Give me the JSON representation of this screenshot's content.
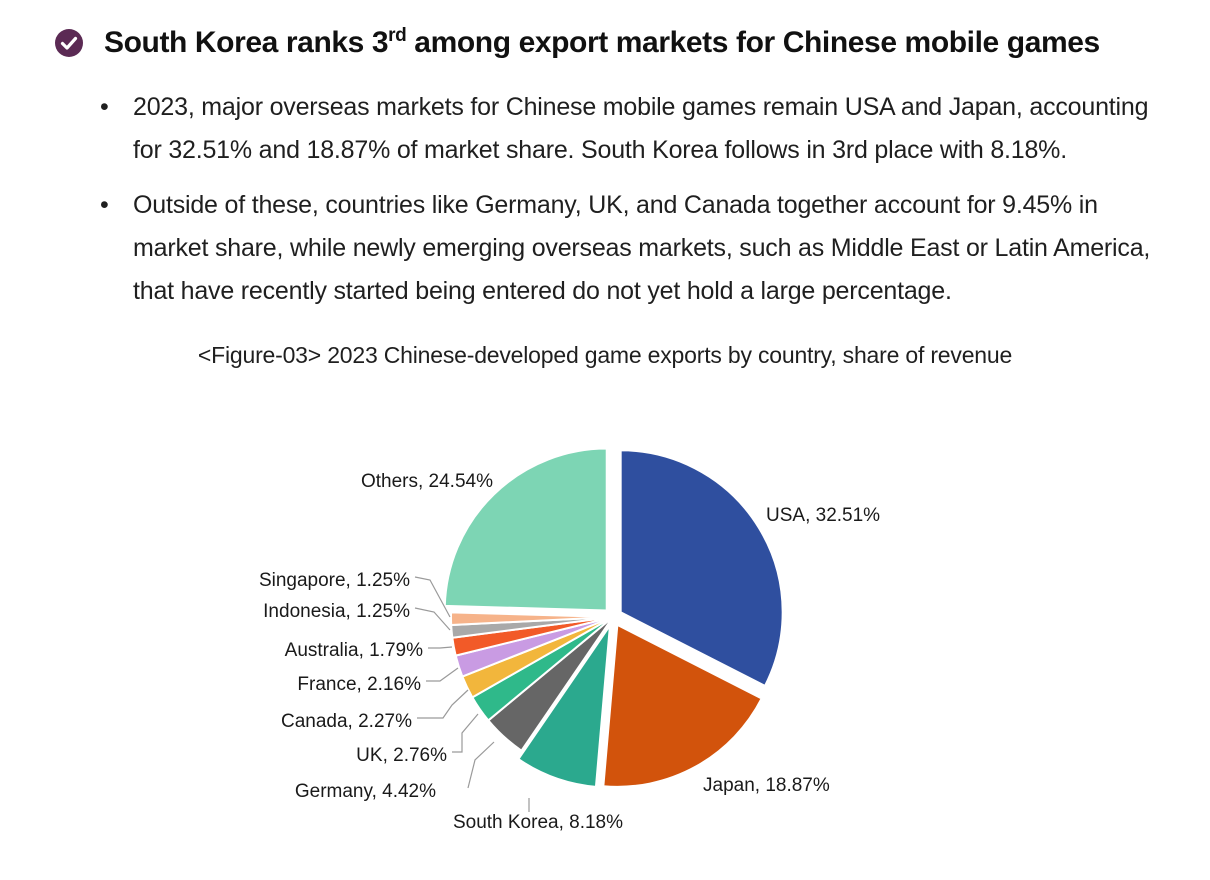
{
  "headline": {
    "text_before": "South Korea ranks 3",
    "superscript": "rd",
    "text_after": " among export markets for Chinese mobile games",
    "icon": "check-circle-icon",
    "icon_color": "#5b2a54"
  },
  "bullets": [
    "2023, major overseas markets for Chinese mobile games remain USA and Japan, accounting for 32.51% and 18.87% of market share. South Korea follows in 3rd place with 8.18%.",
    "Outside of these, countries like Germany, UK, and Canada together account for 9.45% in market share, while newly emerging overseas markets, such as Middle East or Latin America, that have recently started being entered do not yet hold a large percentage."
  ],
  "figure_caption": "<Figure-03> 2023 Chinese-developed game exports by country, share of revenue",
  "chart_data": {
    "type": "pie",
    "title": "<Figure-03> 2023 Chinese-developed game exports by country, share of revenue",
    "start": "12 o'clock",
    "direction": "clockwise",
    "slices": [
      {
        "name": "USA",
        "value": 32.51,
        "label": "USA, 32.51%",
        "color": "#2f4f9f",
        "exploded": true
      },
      {
        "name": "Japan",
        "value": 18.87,
        "label": "Japan, 18.87%",
        "color": "#d2530c",
        "exploded": true
      },
      {
        "name": "South Korea",
        "value": 8.18,
        "label": "South Korea, 8.18%",
        "color": "#2ba98e",
        "exploded": true
      },
      {
        "name": "Germany",
        "value": 4.42,
        "label": "Germany, 4.42%",
        "color": "#666666",
        "exploded": false
      },
      {
        "name": "UK",
        "value": 2.76,
        "label": "UK, 2.76%",
        "color": "#2fb98a",
        "exploded": false
      },
      {
        "name": "Canada",
        "value": 2.27,
        "label": "Canada, 2.27%",
        "color": "#f2b63c",
        "exploded": false
      },
      {
        "name": "France",
        "value": 2.16,
        "label": "France, 2.16%",
        "color": "#c99be3",
        "exploded": false
      },
      {
        "name": "Australia",
        "value": 1.79,
        "label": "Australia, 1.79%",
        "color": "#f25a28",
        "exploded": false
      },
      {
        "name": "Indonesia",
        "value": 1.25,
        "label": "Indonesia, 1.25%",
        "color": "#a9a9a9",
        "exploded": false
      },
      {
        "name": "Singapore",
        "value": 1.25,
        "label": "Singapore, 1.25%",
        "color": "#f6b38a",
        "exploded": false
      },
      {
        "name": "Others",
        "value": 24.54,
        "label": "Others, 24.54%",
        "color": "#7dd5b4",
        "exploded": true
      }
    ]
  }
}
